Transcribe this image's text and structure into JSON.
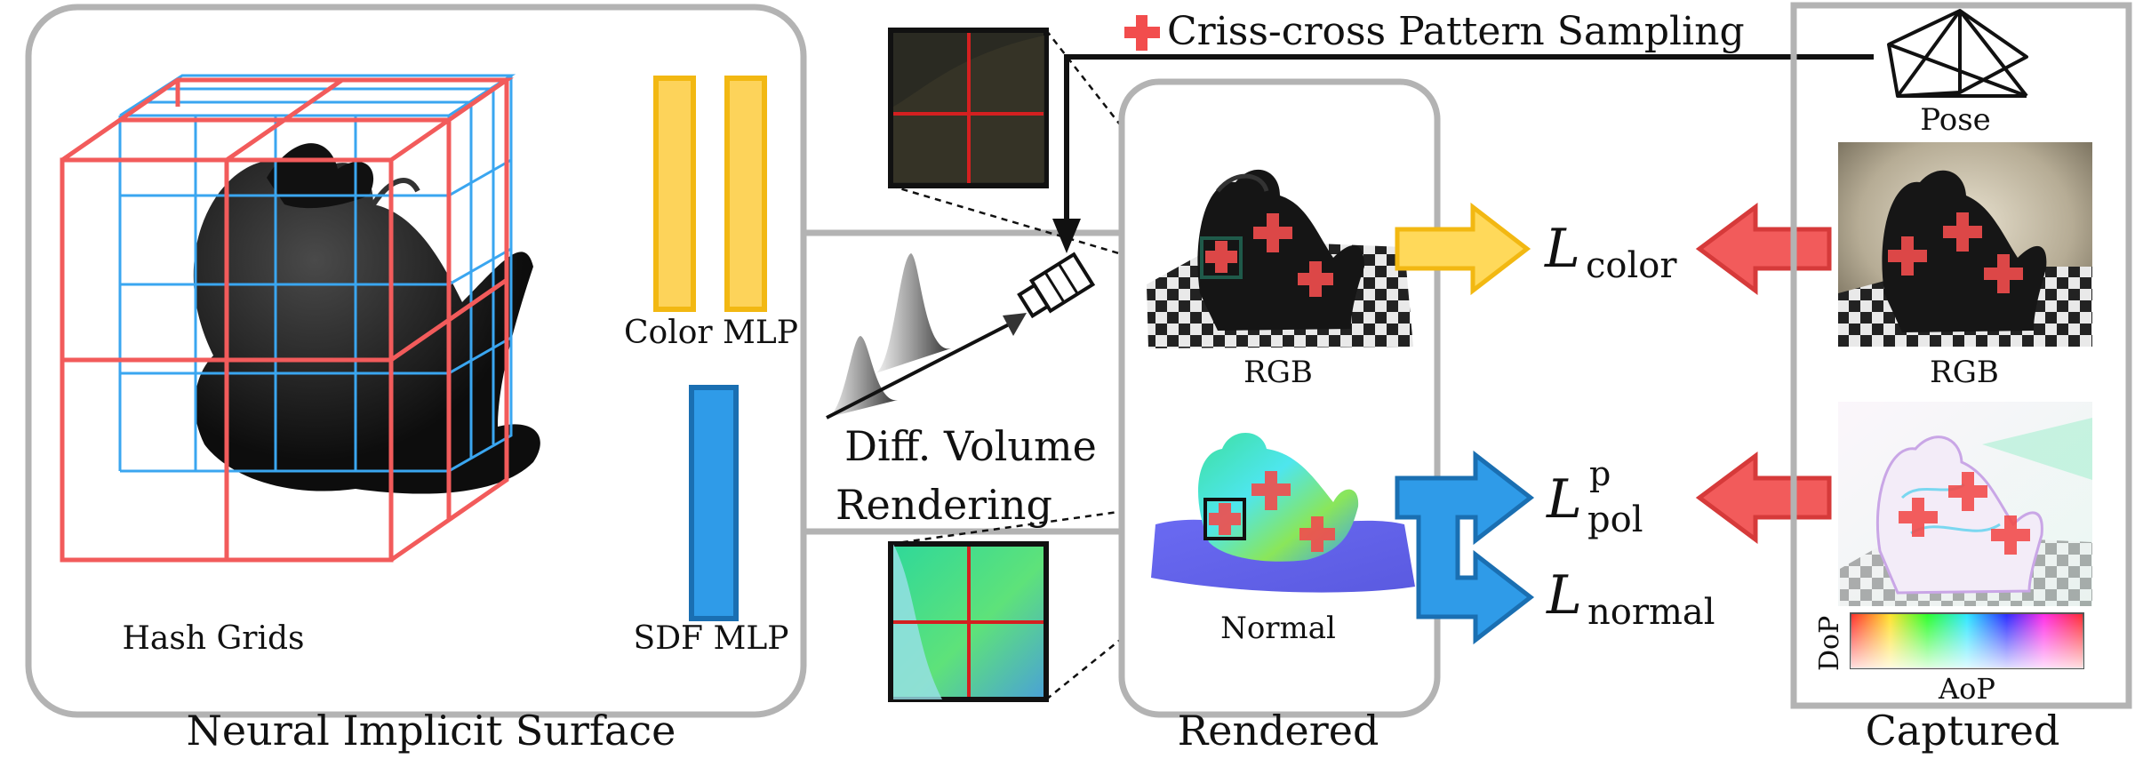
{
  "legend": {
    "text": "Criss-cross Pattern Sampling",
    "color": "#f24d4d"
  },
  "neural_surface": {
    "caption": "Neural Implicit Surface",
    "hash_grids_label": "Hash Grids",
    "color_mlp_label": "Color MLP",
    "sdf_mlp_label": "SDF MLP",
    "colors": {
      "grid_outer": "#f25b5b",
      "grid_inner": "#3aa6f0",
      "color_mlp": "#fdd35a",
      "sdf_mlp": "#2f9be8"
    }
  },
  "volume_rendering": {
    "line1": "Diff. Volume",
    "line2": "Rendering"
  },
  "rendered": {
    "caption": "Rendered",
    "rgb_label": "RGB",
    "normal_label": "Normal"
  },
  "captured": {
    "caption": "Captured",
    "pose_label": "Pose",
    "rgb_label": "RGB",
    "dop_label": "DoP",
    "aop_label": "AoP"
  },
  "losses": {
    "color": {
      "symbol": "L",
      "subscript": "color"
    },
    "pol": {
      "symbol": "L",
      "subscript": "pol",
      "superscript": "p"
    },
    "normal": {
      "symbol": "L",
      "subscript": "normal"
    }
  },
  "colors": {
    "frame": "#b3b3b3",
    "yellow_arrow": "#ffd95a",
    "blue_arrow": "#2f9be8",
    "red_arrow": "#f25b5b"
  }
}
